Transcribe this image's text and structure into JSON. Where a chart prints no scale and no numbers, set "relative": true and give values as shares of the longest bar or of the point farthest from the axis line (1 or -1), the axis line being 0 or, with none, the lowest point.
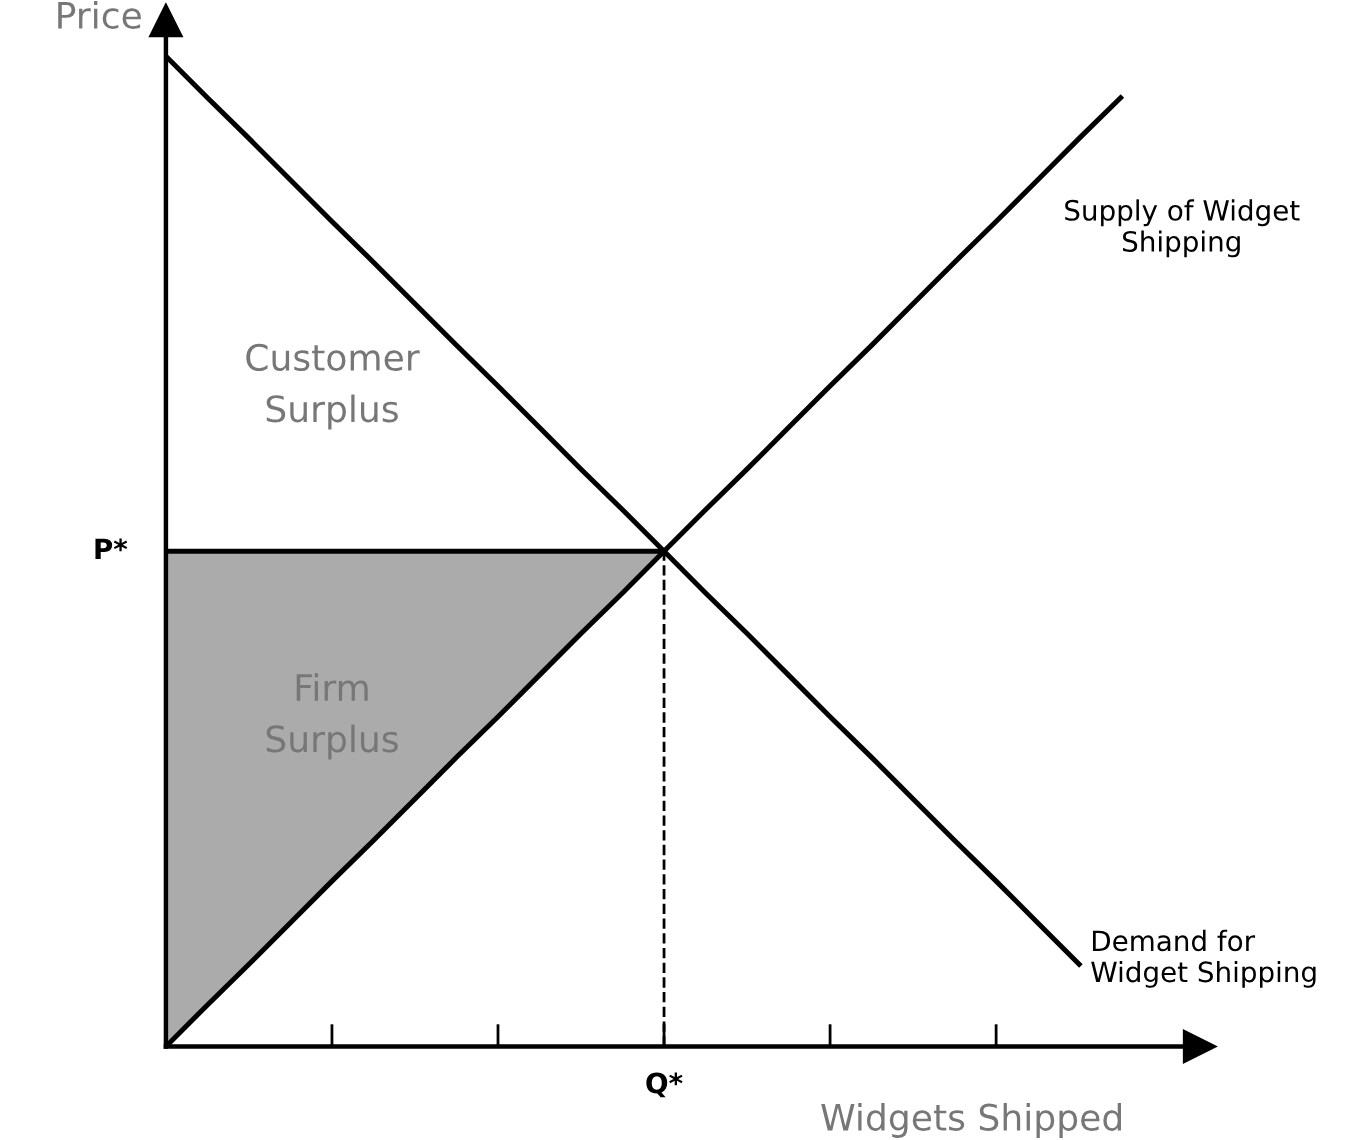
{
  "chart_data": {
    "type": "line",
    "relative": true,
    "xlabel": "Widgets Shipped",
    "ylabel": "Price",
    "categories": [
      null,
      null,
      null,
      null,
      null,
      null,
      null,
      null,
      null,
      null,
      null,
      null,
      null,
      null,
      null,
      null,
      null,
      null,
      null,
      null,
      null,
      null,
      null,
      null
    ],
    "series": [
      {
        "name": "Supply of Widget Shipping",
        "color": "#000000",
        "values": [
          0,
          0.042,
          0.083,
          0.125,
          0.167,
          0.208,
          0.25,
          0.292,
          0.333,
          0.375,
          0.417,
          0.458,
          0.5,
          0.542,
          0.583,
          0.625,
          0.667,
          0.708,
          0.75,
          0.792,
          0.833,
          0.875,
          0.917,
          0.958
        ]
      },
      {
        "name": "Demand for Widget Shipping",
        "color": "#000000",
        "values": [
          1,
          0.958,
          0.917,
          0.875,
          0.833,
          0.792,
          0.75,
          0.708,
          0.667,
          0.625,
          0.583,
          0.542,
          0.5,
          0.458,
          0.417,
          0.375,
          0.333,
          0.292,
          0.25,
          0.208,
          0.167,
          0.125,
          0.083,
          null
        ]
      },
      {
        "color": "#000000",
        "values": [
          0.5,
          0.5,
          0.5,
          0.5,
          0.5,
          0.5,
          0.5,
          0.5,
          0.5,
          0.5,
          0.5,
          0.5,
          0.5,
          null,
          null,
          null,
          null,
          null,
          null,
          null,
          null,
          null,
          null,
          null
        ],
        "lower": [
          0,
          0.042,
          0.083,
          0.125,
          0.167,
          0.208,
          0.25,
          0.292,
          0.333,
          0.375,
          0.417,
          0.458,
          0.5,
          null,
          null,
          null,
          null,
          null,
          null,
          null,
          null,
          null,
          null,
          null
        ],
        "upper": [
          0.5,
          0.5,
          0.5,
          0.5,
          0.5,
          0.5,
          0.5,
          0.5,
          0.5,
          0.5,
          0.5,
          0.5,
          0.5,
          null,
          null,
          null,
          null,
          null,
          null,
          null,
          null,
          null,
          null,
          null
        ]
      }
    ],
    "annotations": [
      "P*",
      "Q*",
      "Customer Surplus",
      "Firm Surplus"
    ],
    "grid": false,
    "legend": false,
    "marker": "none",
    "line_style": "solid"
  }
}
